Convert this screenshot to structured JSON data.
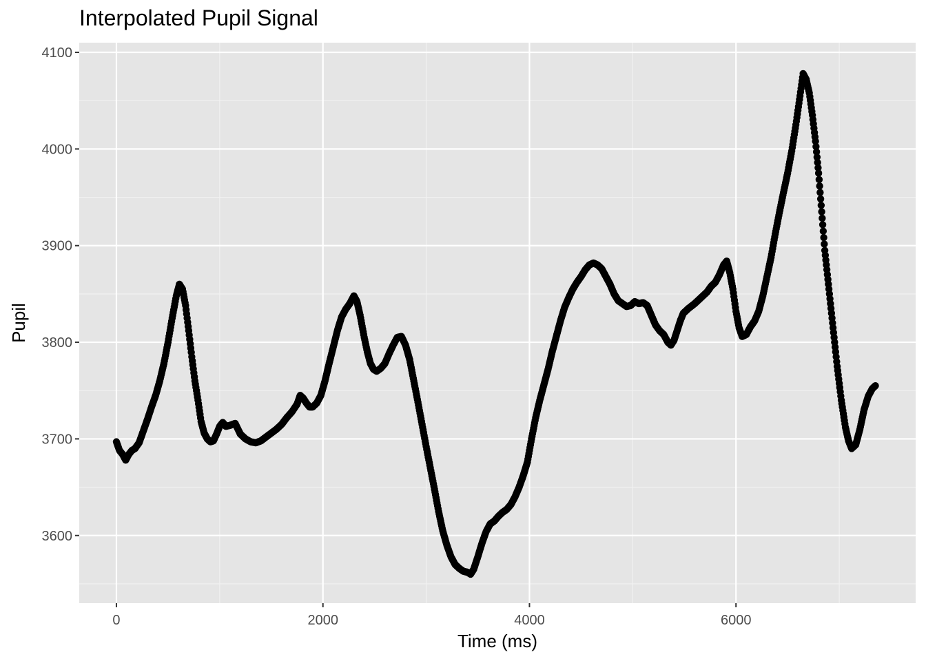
{
  "chart_data": {
    "type": "scatter",
    "title": "Interpolated Pupil Signal",
    "xlabel": "Time (ms)",
    "ylabel": "Pupil",
    "xlim": [
      -360,
      7740
    ],
    "ylim": [
      3530,
      4110
    ],
    "x_ticks": [
      0,
      2000,
      4000,
      6000
    ],
    "y_ticks": [
      3600,
      3700,
      3800,
      3900,
      4000,
      4100
    ],
    "x_tick_labels": [
      "0",
      "2000",
      "4000",
      "6000"
    ],
    "y_tick_labels": [
      "3600",
      "3700",
      "3800",
      "3900",
      "4000",
      "4100"
    ],
    "grid": true,
    "panel_color": "#e5e5e5",
    "point_color": "#000000",
    "trace": [
      [
        0,
        3697
      ],
      [
        30,
        3688
      ],
      [
        60,
        3684
      ],
      [
        90,
        3678
      ],
      [
        120,
        3684
      ],
      [
        150,
        3688
      ],
      [
        180,
        3690
      ],
      [
        220,
        3696
      ],
      [
        260,
        3708
      ],
      [
        300,
        3720
      ],
      [
        340,
        3733
      ],
      [
        380,
        3745
      ],
      [
        420,
        3760
      ],
      [
        460,
        3778
      ],
      [
        500,
        3800
      ],
      [
        540,
        3825
      ],
      [
        580,
        3848
      ],
      [
        610,
        3860
      ],
      [
        640,
        3855
      ],
      [
        670,
        3838
      ],
      [
        700,
        3812
      ],
      [
        730,
        3785
      ],
      [
        760,
        3760
      ],
      [
        790,
        3740
      ],
      [
        820,
        3718
      ],
      [
        850,
        3706
      ],
      [
        880,
        3700
      ],
      [
        910,
        3697
      ],
      [
        940,
        3698
      ],
      [
        970,
        3705
      ],
      [
        1000,
        3713
      ],
      [
        1030,
        3717
      ],
      [
        1060,
        3713
      ],
      [
        1100,
        3714
      ],
      [
        1150,
        3716
      ],
      [
        1200,
        3705
      ],
      [
        1250,
        3700
      ],
      [
        1300,
        3697
      ],
      [
        1350,
        3696
      ],
      [
        1400,
        3698
      ],
      [
        1450,
        3702
      ],
      [
        1500,
        3706
      ],
      [
        1550,
        3710
      ],
      [
        1600,
        3715
      ],
      [
        1650,
        3722
      ],
      [
        1700,
        3728
      ],
      [
        1750,
        3736
      ],
      [
        1780,
        3745
      ],
      [
        1810,
        3742
      ],
      [
        1840,
        3737
      ],
      [
        1870,
        3733
      ],
      [
        1900,
        3733
      ],
      [
        1940,
        3737
      ],
      [
        1980,
        3745
      ],
      [
        2020,
        3760
      ],
      [
        2060,
        3778
      ],
      [
        2100,
        3795
      ],
      [
        2140,
        3812
      ],
      [
        2180,
        3826
      ],
      [
        2220,
        3834
      ],
      [
        2260,
        3840
      ],
      [
        2300,
        3848
      ],
      [
        2330,
        3842
      ],
      [
        2360,
        3828
      ],
      [
        2400,
        3805
      ],
      [
        2430,
        3790
      ],
      [
        2460,
        3778
      ],
      [
        2490,
        3772
      ],
      [
        2520,
        3770
      ],
      [
        2560,
        3773
      ],
      [
        2600,
        3778
      ],
      [
        2640,
        3788
      ],
      [
        2680,
        3797
      ],
      [
        2720,
        3805
      ],
      [
        2760,
        3806
      ],
      [
        2800,
        3797
      ],
      [
        2840,
        3782
      ],
      [
        2880,
        3760
      ],
      [
        2920,
        3738
      ],
      [
        2960,
        3715
      ],
      [
        3000,
        3692
      ],
      [
        3040,
        3670
      ],
      [
        3080,
        3648
      ],
      [
        3120,
        3625
      ],
      [
        3160,
        3605
      ],
      [
        3200,
        3590
      ],
      [
        3240,
        3578
      ],
      [
        3280,
        3570
      ],
      [
        3320,
        3566
      ],
      [
        3360,
        3563
      ],
      [
        3400,
        3562
      ],
      [
        3430,
        3560
      ],
      [
        3460,
        3565
      ],
      [
        3500,
        3578
      ],
      [
        3540,
        3592
      ],
      [
        3580,
        3604
      ],
      [
        3620,
        3612
      ],
      [
        3660,
        3615
      ],
      [
        3700,
        3620
      ],
      [
        3740,
        3624
      ],
      [
        3780,
        3627
      ],
      [
        3820,
        3632
      ],
      [
        3860,
        3640
      ],
      [
        3900,
        3650
      ],
      [
        3940,
        3662
      ],
      [
        3980,
        3676
      ],
      [
        4020,
        3700
      ],
      [
        4060,
        3722
      ],
      [
        4100,
        3740
      ],
      [
        4140,
        3756
      ],
      [
        4180,
        3772
      ],
      [
        4220,
        3790
      ],
      [
        4260,
        3806
      ],
      [
        4300,
        3822
      ],
      [
        4340,
        3836
      ],
      [
        4380,
        3846
      ],
      [
        4420,
        3855
      ],
      [
        4460,
        3862
      ],
      [
        4500,
        3868
      ],
      [
        4540,
        3875
      ],
      [
        4580,
        3880
      ],
      [
        4620,
        3882
      ],
      [
        4660,
        3880
      ],
      [
        4700,
        3876
      ],
      [
        4740,
        3868
      ],
      [
        4780,
        3860
      ],
      [
        4820,
        3850
      ],
      [
        4860,
        3843
      ],
      [
        4900,
        3840
      ],
      [
        4940,
        3837
      ],
      [
        4980,
        3838
      ],
      [
        5020,
        3842
      ],
      [
        5060,
        3840
      ],
      [
        5100,
        3841
      ],
      [
        5140,
        3838
      ],
      [
        5180,
        3828
      ],
      [
        5220,
        3818
      ],
      [
        5260,
        3812
      ],
      [
        5300,
        3808
      ],
      [
        5340,
        3800
      ],
      [
        5370,
        3797
      ],
      [
        5400,
        3802
      ],
      [
        5430,
        3812
      ],
      [
        5460,
        3822
      ],
      [
        5490,
        3830
      ],
      [
        5540,
        3835
      ],
      [
        5600,
        3840
      ],
      [
        5660,
        3846
      ],
      [
        5720,
        3852
      ],
      [
        5760,
        3858
      ],
      [
        5800,
        3862
      ],
      [
        5840,
        3870
      ],
      [
        5880,
        3880
      ],
      [
        5910,
        3884
      ],
      [
        5940,
        3872
      ],
      [
        5970,
        3855
      ],
      [
        6000,
        3832
      ],
      [
        6030,
        3815
      ],
      [
        6060,
        3806
      ],
      [
        6100,
        3808
      ],
      [
        6140,
        3816
      ],
      [
        6180,
        3822
      ],
      [
        6220,
        3832
      ],
      [
        6260,
        3848
      ],
      [
        6300,
        3868
      ],
      [
        6340,
        3888
      ],
      [
        6380,
        3912
      ],
      [
        6420,
        3934
      ],
      [
        6460,
        3955
      ],
      [
        6500,
        3975
      ],
      [
        6540,
        3998
      ],
      [
        6580,
        4025
      ],
      [
        6620,
        4055
      ],
      [
        6650,
        4078
      ],
      [
        6680,
        4072
      ],
      [
        6710,
        4058
      ],
      [
        6740,
        4035
      ],
      [
        6770,
        4008
      ],
      [
        6800,
        3975
      ],
      [
        6830,
        3935
      ],
      [
        6860,
        3895
      ],
      [
        6900,
        3855
      ],
      [
        6940,
        3815
      ],
      [
        6980,
        3775
      ],
      [
        7020,
        3740
      ],
      [
        7060,
        3712
      ],
      [
        7090,
        3698
      ],
      [
        7120,
        3690
      ],
      [
        7160,
        3694
      ],
      [
        7200,
        3710
      ],
      [
        7240,
        3730
      ],
      [
        7280,
        3744
      ],
      [
        7320,
        3752
      ],
      [
        7350,
        3755
      ]
    ]
  }
}
